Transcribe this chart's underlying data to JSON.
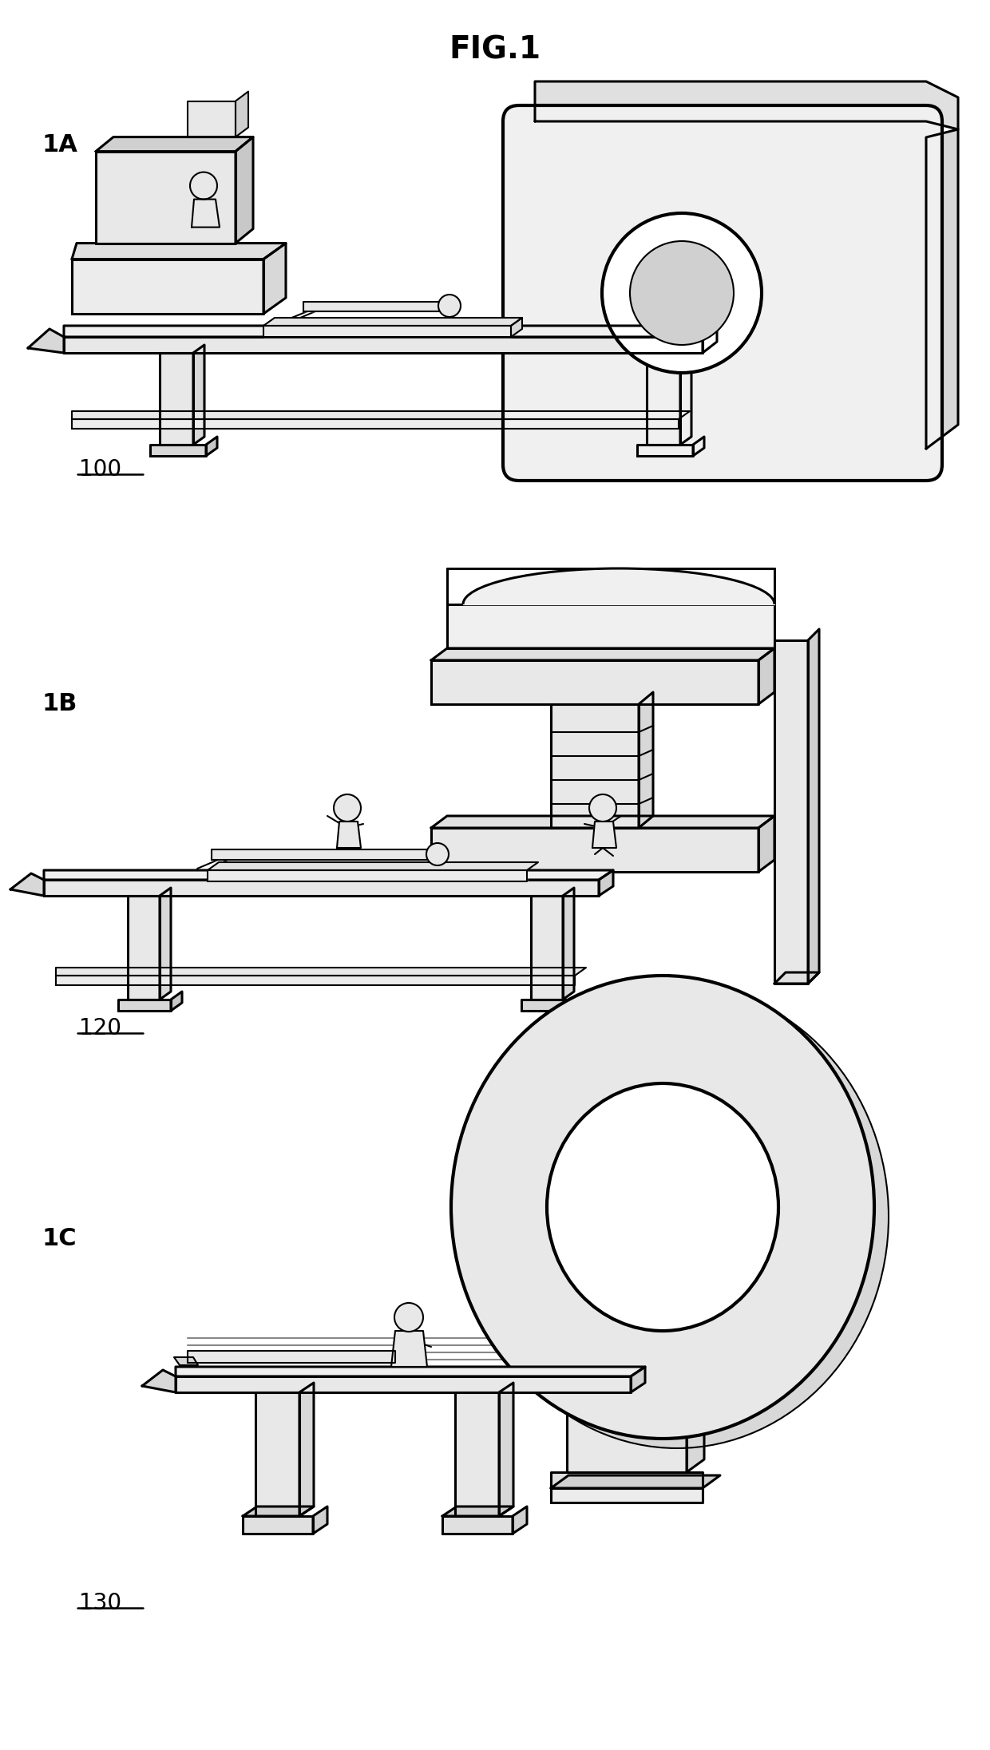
{
  "title": "FIG.1",
  "title_fontsize": 28,
  "title_fontweight": "bold",
  "label_1A": "1A",
  "label_1B": "1B",
  "label_1C": "1C",
  "ref_100": "100",
  "ref_120": "120",
  "ref_130": "130",
  "label_fontsize": 22,
  "ref_fontsize": 20,
  "bg_color": "#ffffff",
  "line_color": "#000000",
  "fill_light": "#e8e8e8",
  "fill_medium": "#d0d0d0",
  "figure_width": 12.4,
  "figure_height": 21.92
}
